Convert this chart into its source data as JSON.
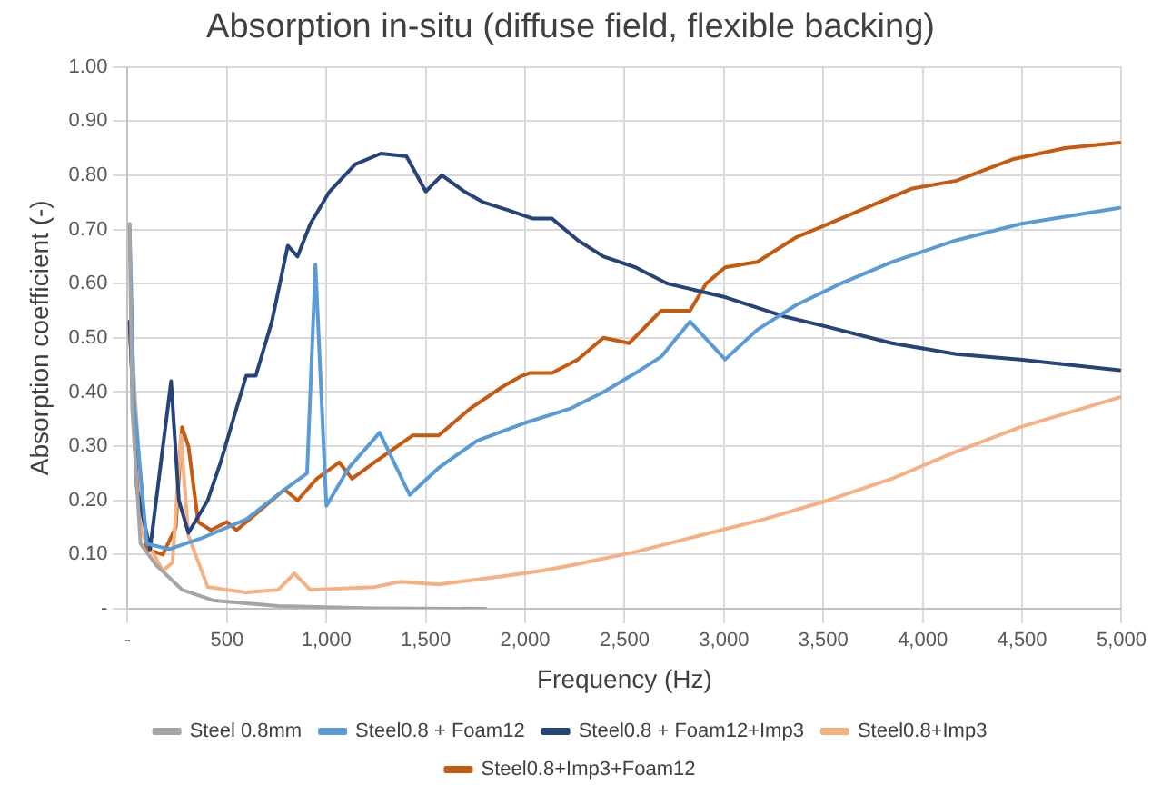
{
  "chart_data": {
    "type": "line",
    "title": "Absorption in-situ (diffuse field, flexible backing)",
    "xlabel": "Frequency (Hz)",
    "ylabel": "Absorption coefficient (-)",
    "xlim": [
      0,
      5000
    ],
    "xticks": [
      {
        "value": 0,
        "label": "-"
      },
      500,
      {
        "value": 1000,
        "label": "1,000"
      },
      {
        "value": 1500,
        "label": "1,500"
      },
      {
        "value": 2000,
        "label": "2,000"
      },
      {
        "value": 2500,
        "label": "2,500"
      },
      {
        "value": 3000,
        "label": "3,000"
      },
      {
        "value": 3500,
        "label": "3,500"
      },
      {
        "value": 4000,
        "label": "4,000"
      },
      {
        "value": 4500,
        "label": "4,500"
      },
      {
        "value": 5000,
        "label": "5,000"
      }
    ],
    "ylim": [
      0,
      1
    ],
    "yticks": [
      {
        "value": 0,
        "label": "-"
      },
      {
        "value": 0.1,
        "label": "0.10"
      },
      {
        "value": 0.2,
        "label": "0.20"
      },
      {
        "value": 0.3,
        "label": "0.30"
      },
      {
        "value": 0.4,
        "label": "0.40"
      },
      {
        "value": 0.5,
        "label": "0.50"
      },
      {
        "value": 0.6,
        "label": "0.60"
      },
      {
        "value": 0.7,
        "label": "0.70"
      },
      {
        "value": 0.8,
        "label": "0.80"
      },
      {
        "value": 0.9,
        "label": "0.90"
      },
      {
        "value": 1,
        "label": "1.00"
      }
    ],
    "grid": true,
    "legend": "bottom",
    "marker": "none",
    "line_style": "solid",
    "series": [
      {
        "name": "Steel 0.8mm",
        "color": "#a5a5a5",
        "x": [
          10,
          23,
          65,
          145,
          274,
          435,
          758,
          1242,
          1800
        ],
        "values": [
          0.71,
          0.37,
          0.12,
          0.08,
          0.035,
          0.015,
          0.005,
          0.001,
          0
        ]
      },
      {
        "name": "Steel0.8 + Foam12",
        "color": "#5b9bd5",
        "x": [
          10,
          32,
          97,
          210,
          371,
          597,
          790,
          903,
          945,
          1000,
          1113,
          1268,
          1419,
          1565,
          1758,
          2016,
          2232,
          2394,
          2555,
          2684,
          2829,
          3006,
          3168,
          3361,
          3587,
          3845,
          4168,
          4490,
          4990
        ],
        "values": [
          0.71,
          0.385,
          0.12,
          0.11,
          0.13,
          0.165,
          0.22,
          0.25,
          0.635,
          0.19,
          0.26,
          0.325,
          0.21,
          0.26,
          0.31,
          0.345,
          0.37,
          0.4,
          0.435,
          0.465,
          0.53,
          0.46,
          0.515,
          0.56,
          0.6,
          0.64,
          0.68,
          0.71,
          0.74
        ]
      },
      {
        "name": "Steel0.8 + Foam12+Imp3",
        "color": "#264478",
        "x": [
          10,
          48,
          113,
          219,
          258,
          306,
          403,
          468,
          532,
          597,
          645,
          726,
          806,
          855,
          919,
          1016,
          1145,
          1274,
          1403,
          1500,
          1581,
          1694,
          1790,
          1919,
          2039,
          2135,
          2265,
          2394,
          2555,
          2716,
          3006,
          3297,
          3523,
          3845,
          4168,
          4490,
          4990
        ],
        "values": [
          0.53,
          0.22,
          0.11,
          0.42,
          0.2,
          0.14,
          0.2,
          0.27,
          0.35,
          0.43,
          0.43,
          0.53,
          0.67,
          0.65,
          0.71,
          0.77,
          0.82,
          0.84,
          0.835,
          0.77,
          0.8,
          0.77,
          0.75,
          0.735,
          0.72,
          0.72,
          0.68,
          0.65,
          0.63,
          0.6,
          0.575,
          0.54,
          0.52,
          0.49,
          0.47,
          0.46,
          0.44
        ]
      },
      {
        "name": "Steel0.8+Imp3",
        "color": "#f4b183",
        "x": [
          16,
          81,
          177,
          226,
          268,
          306,
          403,
          597,
          758,
          839,
          919,
          1242,
          1371,
          1565,
          1887,
          2081,
          2232,
          2555,
          2877,
          3200,
          3523,
          3845,
          4168,
          4490,
          4990
        ],
        "values": [
          0.52,
          0.135,
          0.07,
          0.085,
          0.32,
          0.135,
          0.04,
          0.03,
          0.035,
          0.065,
          0.035,
          0.04,
          0.05,
          0.045,
          0.06,
          0.07,
          0.08,
          0.105,
          0.135,
          0.165,
          0.2,
          0.24,
          0.29,
          0.335,
          0.39
        ]
      },
      {
        "name": "Steel0.8+Imp3+Foam12",
        "color": "#c55a11",
        "x": [
          10,
          48,
          97,
          177,
          242,
          274,
          306,
          355,
          419,
          500,
          548,
          661,
          790,
          855,
          952,
          1065,
          1129,
          1242,
          1435,
          1565,
          1726,
          1887,
          1984,
          2023,
          2135,
          2265,
          2394,
          2523,
          2684,
          2829,
          2910,
          3006,
          3168,
          3361,
          3523,
          3748,
          3942,
          4168,
          4458,
          4716,
          4990
        ],
        "values": [
          0.53,
          0.22,
          0.11,
          0.1,
          0.15,
          0.335,
          0.3,
          0.16,
          0.145,
          0.16,
          0.145,
          0.18,
          0.22,
          0.2,
          0.24,
          0.27,
          0.24,
          0.27,
          0.32,
          0.32,
          0.37,
          0.41,
          0.43,
          0.435,
          0.435,
          0.46,
          0.5,
          0.49,
          0.55,
          0.55,
          0.6,
          0.63,
          0.64,
          0.685,
          0.71,
          0.745,
          0.775,
          0.79,
          0.83,
          0.85,
          0.86
        ]
      }
    ]
  }
}
